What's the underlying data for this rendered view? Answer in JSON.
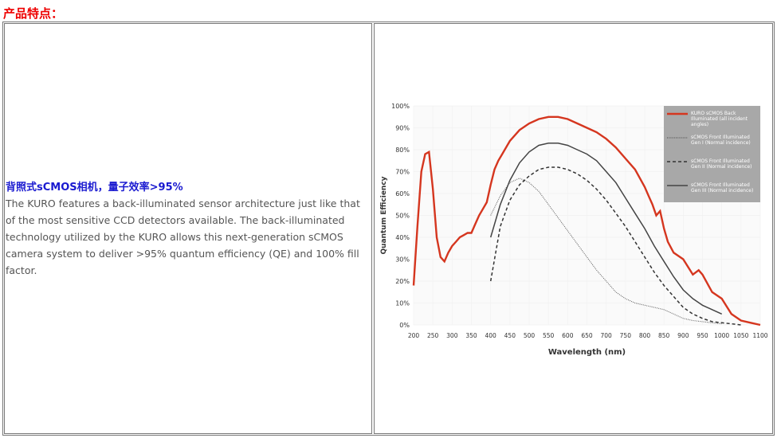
{
  "header": {
    "title": "产品特点："
  },
  "left": {
    "heading": "背照式sCMOS相机，量子效率>95%",
    "body": "The KURO features a back-illuminated sensor architecture just like that of the most sensitive CCD detectors available. The back-illuminated technology utilized by the KURO allows this next-generation sCMOS camera system to deliver >95% quantum efficiency (QE) and 100% fill factor."
  },
  "chart": {
    "type": "line",
    "x_label": "Wavelength (nm)",
    "y_label": "Quantum Efficiency",
    "grid": true,
    "legend": "top-right",
    "xlim": [
      200,
      1100
    ],
    "ylim": [
      0,
      100
    ],
    "xticks": [
      200,
      250,
      300,
      350,
      400,
      450,
      500,
      550,
      600,
      650,
      700,
      750,
      800,
      850,
      900,
      950,
      1000,
      1050,
      1100
    ],
    "yticks": [
      {
        "value": 0,
        "label": "0%"
      },
      {
        "value": 10,
        "label": "10%"
      },
      {
        "value": 20,
        "label": "20%"
      },
      {
        "value": 30,
        "label": "30%"
      },
      {
        "value": 40,
        "label": "40%"
      },
      {
        "value": 50,
        "label": "50%"
      },
      {
        "value": 60,
        "label": "60%"
      },
      {
        "value": 70,
        "label": "70%"
      },
      {
        "value": 80,
        "label": "80%"
      },
      {
        "value": 90,
        "label": "90%"
      },
      {
        "value": 100,
        "label": "100%"
      }
    ],
    "series": [
      {
        "name": "KURO sCMOS Back Illuminated (all incident angles)",
        "color": "#d5361f",
        "dash": "solid",
        "x": [
          200,
          210,
          220,
          230,
          240,
          250,
          260,
          270,
          280,
          290,
          300,
          310,
          320,
          330,
          340,
          350,
          360,
          370,
          380,
          390,
          400,
          410,
          420,
          430,
          450,
          475,
          500,
          525,
          550,
          575,
          600,
          625,
          650,
          675,
          700,
          725,
          750,
          775,
          800,
          810,
          820,
          830,
          840,
          850,
          860,
          875,
          900,
          925,
          940,
          950,
          975,
          1000,
          1025,
          1050,
          1075,
          1100
        ],
        "values": [
          18,
          45,
          70,
          78,
          79,
          62,
          40,
          31,
          29,
          33,
          36,
          38,
          40,
          41,
          42,
          42,
          46,
          50,
          53,
          56,
          64,
          71,
          75,
          78,
          84,
          89,
          92,
          94,
          95,
          95,
          94,
          92,
          90,
          88,
          85,
          81,
          76,
          71,
          63,
          59,
          55,
          50,
          52,
          44,
          38,
          33,
          30,
          23,
          25,
          23,
          15,
          12,
          5,
          2,
          1,
          0
        ]
      },
      {
        "name": "sCMOS Front Illuminated Gen I (Normal incidence)",
        "color": "#666666",
        "dash": "dotted",
        "x": [
          400,
          425,
          450,
          475,
          500,
          525,
          550,
          575,
          600,
          625,
          650,
          675,
          700,
          725,
          750,
          775,
          800,
          825,
          850,
          875,
          900,
          925,
          950,
          975,
          1000
        ],
        "values": [
          50,
          59,
          65,
          67,
          65,
          61,
          55,
          49,
          43,
          37,
          31,
          25,
          20,
          15,
          12,
          10,
          9,
          8,
          7,
          5,
          3,
          2,
          1.5,
          1,
          0.5
        ]
      },
      {
        "name": "sCMOS Front Illuminated Gen II (Normal incidence)",
        "color": "#333333",
        "dash": "dashed",
        "x": [
          400,
          425,
          450,
          475,
          500,
          525,
          550,
          575,
          600,
          625,
          650,
          675,
          700,
          725,
          750,
          775,
          800,
          825,
          850,
          875,
          900,
          925,
          950,
          975,
          1000,
          1025,
          1050
        ],
        "values": [
          20,
          45,
          57,
          64,
          68,
          71,
          72,
          72,
          71,
          69,
          66,
          62,
          57,
          51,
          45,
          38,
          31,
          24,
          18,
          13,
          8,
          5,
          3,
          1.5,
          1,
          0.5,
          0
        ]
      },
      {
        "name": "sCMOS Front Illuminated Gen III (Normal incidence)",
        "color": "#444444",
        "dash": "solid",
        "x": [
          400,
          425,
          450,
          475,
          500,
          525,
          550,
          575,
          600,
          625,
          650,
          675,
          700,
          725,
          750,
          775,
          800,
          825,
          850,
          875,
          900,
          925,
          950,
          975,
          1000
        ],
        "values": [
          40,
          55,
          66,
          74,
          79,
          82,
          83,
          83,
          82,
          80,
          78,
          75,
          70,
          65,
          58,
          51,
          44,
          36,
          29,
          22,
          16,
          12,
          9,
          7,
          5
        ]
      }
    ]
  }
}
